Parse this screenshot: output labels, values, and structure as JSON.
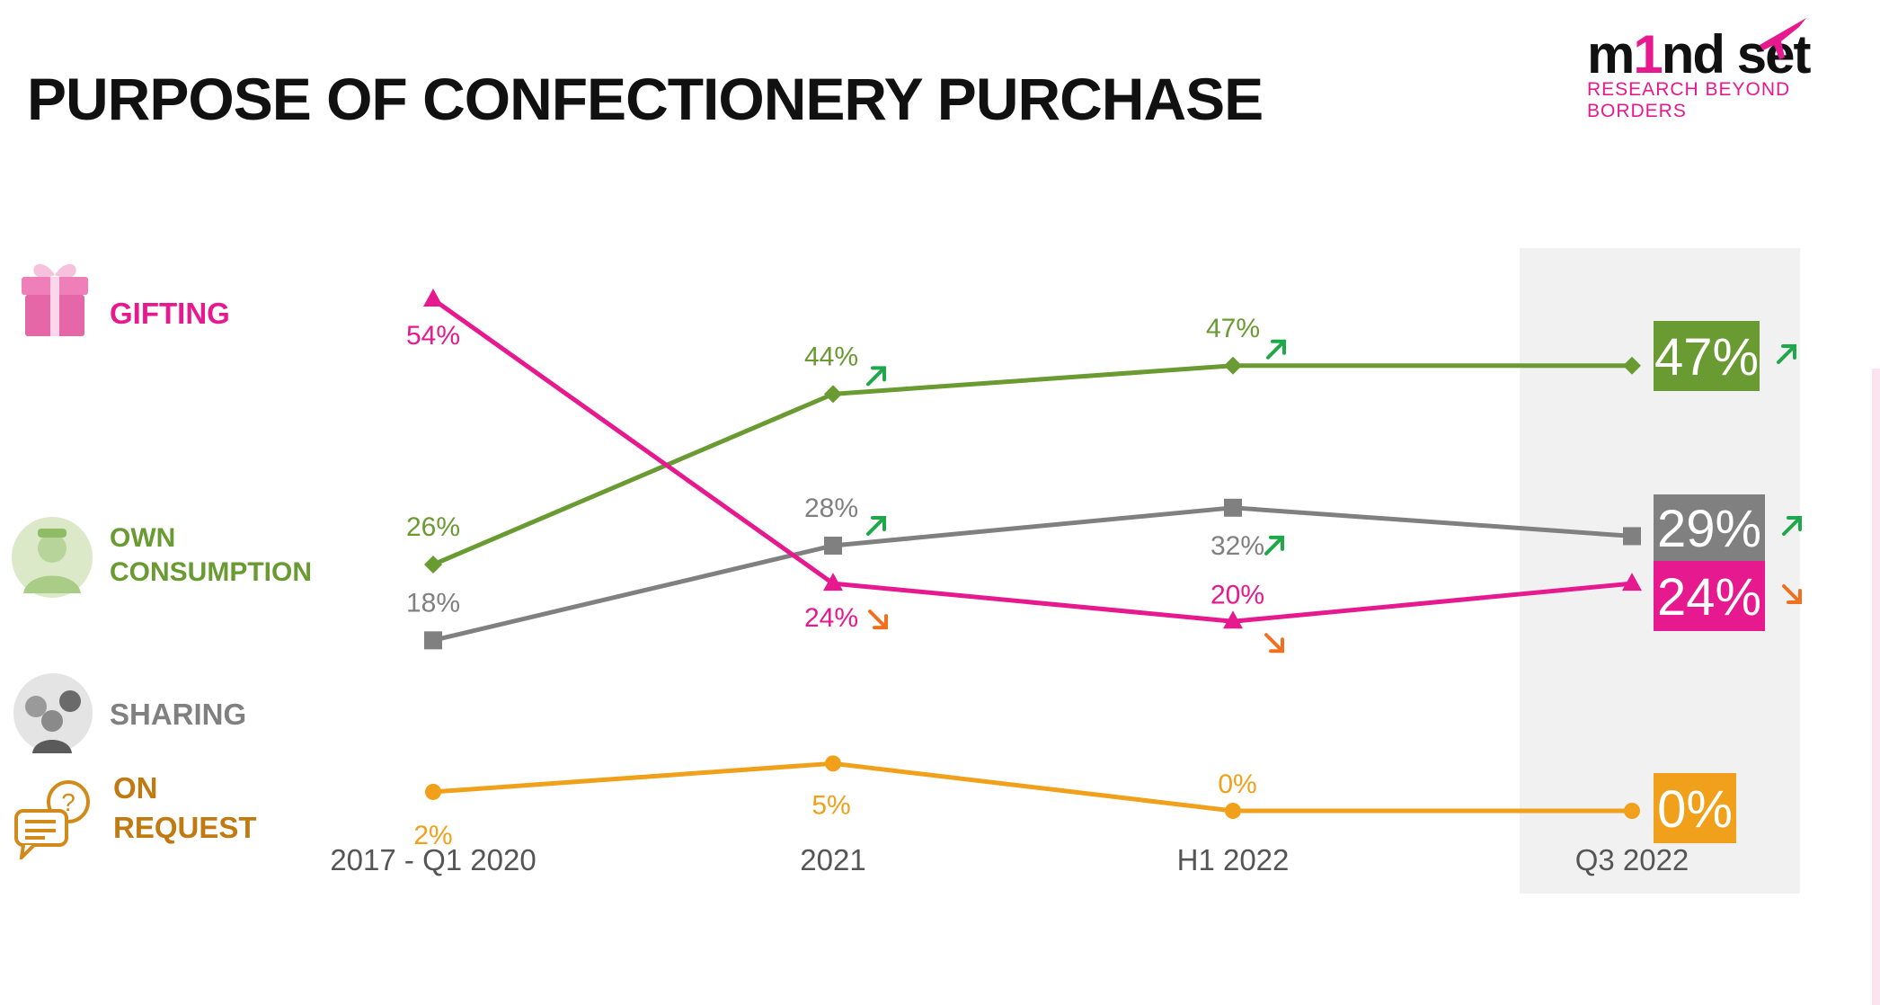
{
  "title": "PURPOSE OF CONFECTIONERY PURCHASE",
  "logo": {
    "word_a": "m",
    "word_b": "1",
    "word_c": "nd",
    "word_d": "set",
    "tagline": "RESEARCH BEYOND BORDERS"
  },
  "colors": {
    "gifting": "#e6198f",
    "own": "#6a9a32",
    "sharing": "#808080",
    "request": "#f0a01a",
    "request_label": "#c07a10",
    "up": "#1ea84a",
    "down": "#f07020"
  },
  "legend": [
    {
      "key": "gifting",
      "label": "GIFTING",
      "icon": "gift-icon"
    },
    {
      "key": "own",
      "label": "OWN\nCONSUMPTION",
      "icon": "person-eating-icon"
    },
    {
      "key": "sharing",
      "label": "SHARING",
      "icon": "group-people-icon"
    },
    {
      "key": "request",
      "label": "ON\nREQUEST",
      "icon": "speech-bubble-question-icon"
    }
  ],
  "chart_data": {
    "type": "line",
    "categories": [
      "2017 - Q1 2020",
      "2021",
      "H1 2022",
      "Q3 2022"
    ],
    "ylim": [
      0,
      60
    ],
    "grid": false,
    "highlight_category": "Q3 2022",
    "series": [
      {
        "key": "gifting",
        "name": "GIFTING",
        "marker": "triangle",
        "values": [
          54,
          24,
          20,
          24
        ],
        "labels": [
          "54%",
          "24%",
          "20%",
          "24%"
        ],
        "trends": [
          null,
          "down",
          "down",
          "down"
        ]
      },
      {
        "key": "own",
        "name": "OWN CONSUMPTION",
        "marker": "diamond",
        "values": [
          26,
          44,
          47,
          47
        ],
        "labels": [
          "26%",
          "44%",
          "47%",
          "47%"
        ],
        "trends": [
          null,
          "up",
          "up",
          "up"
        ]
      },
      {
        "key": "sharing",
        "name": "SHARING",
        "marker": "square",
        "values": [
          18,
          28,
          32,
          29
        ],
        "labels": [
          "18%",
          "28%",
          "32%",
          "29%"
        ],
        "trends": [
          null,
          "up",
          "up",
          "up"
        ]
      },
      {
        "key": "request",
        "name": "ON REQUEST",
        "marker": "circle",
        "values": [
          2,
          5,
          0,
          0
        ],
        "labels": [
          "2%",
          "5%",
          "0%",
          "0%"
        ],
        "trends": [
          null,
          null,
          null,
          null
        ]
      }
    ]
  }
}
